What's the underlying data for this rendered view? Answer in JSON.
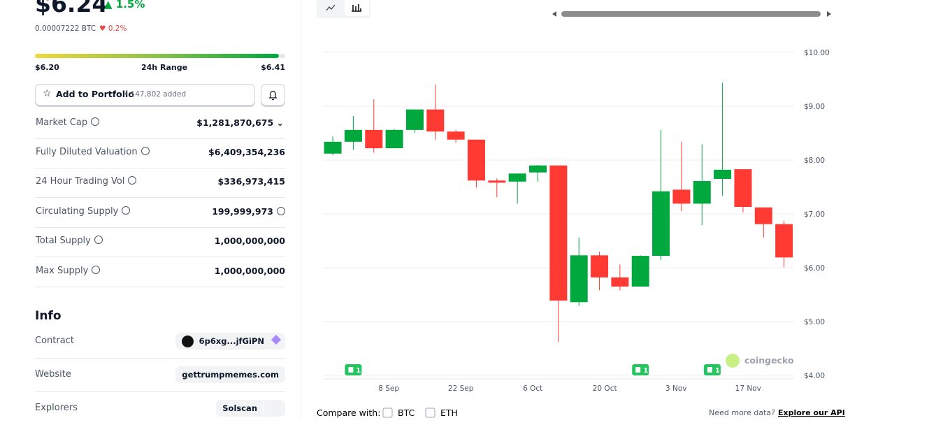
{
  "price": {
    "value": "$6.24",
    "change": "1.5%",
    "btc": "0.00007222 BTC",
    "btc_change": "0.2%"
  },
  "range": {
    "low": "$6.20",
    "label": "24h Range",
    "high": "$6.41"
  },
  "portfolio": {
    "button": "Add to Portfolio",
    "added": "• 147,802 added"
  },
  "stats": [
    {
      "label": "Market Cap",
      "value": "$1,281,870,675"
    },
    {
      "label": "Fully Diluted Valuation",
      "value": "$6,409,354,236"
    },
    {
      "label": "24 Hour Trading Vol",
      "value": "$336,973,415"
    },
    {
      "label": "Circulating Supply",
      "value": "199,999,973"
    },
    {
      "label": "Total Supply",
      "value": "1,000,000,000"
    },
    {
      "label": "Max Supply",
      "value": "1,000,000,000"
    }
  ],
  "info": {
    "title": "Info",
    "rows": [
      {
        "label": "Contract",
        "value": "6p6xg...jfGiPN"
      },
      {
        "label": "Website",
        "value": "gettrumpmemes.com"
      },
      {
        "label": "Explorers",
        "value": "Solscan"
      }
    ]
  },
  "chart_data": {
    "type": "candlestick",
    "up_color": "#00a83e",
    "down_color": "#ff3a33",
    "x": [
      0,
      1,
      2,
      3,
      4,
      5,
      6,
      7,
      8,
      9,
      10,
      11,
      12,
      13,
      14,
      15,
      16,
      17,
      18,
      19,
      20,
      21,
      22
    ],
    "open": [
      8.12,
      8.34,
      8.56,
      8.22,
      8.56,
      8.94,
      8.53,
      8.38,
      7.62,
      7.6,
      7.77,
      7.9,
      5.36,
      6.23,
      5.82,
      5.65,
      6.22,
      7.45,
      7.19,
      7.65,
      7.83,
      7.12,
      6.81
    ],
    "high": [
      8.44,
      8.82,
      9.13,
      8.58,
      8.94,
      9.4,
      8.56,
      8.38,
      7.66,
      7.75,
      7.91,
      7.9,
      6.56,
      6.3,
      6.06,
      6.23,
      8.56,
      8.34,
      8.29,
      9.44,
      7.83,
      7.12,
      6.87
    ],
    "low": [
      8.09,
      8.19,
      8.14,
      8.22,
      8.51,
      8.38,
      8.32,
      7.49,
      7.31,
      7.19,
      7.6,
      4.62,
      5.29,
      5.58,
      5.58,
      5.65,
      6.14,
      7.05,
      6.79,
      7.34,
      7.03,
      6.56,
      6.01
    ],
    "close": [
      8.34,
      8.56,
      8.22,
      8.56,
      8.94,
      8.53,
      8.38,
      7.62,
      7.58,
      7.75,
      7.9,
      5.39,
      6.23,
      5.82,
      5.65,
      6.22,
      7.42,
      7.19,
      7.61,
      7.82,
      7.13,
      6.81,
      6.19
    ],
    "xlim": [
      -0.48,
      22.49
    ],
    "xticks": [
      {
        "value": 2.73,
        "label": "8 Sep"
      },
      {
        "value": 6.24,
        "label": "22 Sep"
      },
      {
        "value": 9.75,
        "label": "6 Oct"
      },
      {
        "value": 13.26,
        "label": "20 Oct"
      },
      {
        "value": 16.74,
        "label": "3 Nov"
      },
      {
        "value": 20.25,
        "label": "17 Nov"
      }
    ],
    "ylim": [
      4,
      10
    ],
    "yticks": [
      {
        "value": 4,
        "label": "$4.00"
      },
      {
        "value": 5,
        "label": "$5.00"
      },
      {
        "value": 6,
        "label": "$6.00"
      },
      {
        "value": 7,
        "label": "$7.00"
      },
      {
        "value": 8,
        "label": "$8.00"
      },
      {
        "value": 9,
        "label": "$9.00"
      },
      {
        "value": 10,
        "label": "$10.00"
      }
    ],
    "grid": true,
    "events": [
      {
        "x": 1,
        "label": "1"
      },
      {
        "x": 15,
        "label": "1"
      },
      {
        "x": 18.5,
        "label": "1"
      }
    ]
  },
  "watermark": "coingecko",
  "compare": {
    "label": "Compare with:",
    "options": [
      "BTC",
      "ETH"
    ]
  },
  "footer": {
    "text": "Need more data?",
    "link": "Explore our API"
  }
}
